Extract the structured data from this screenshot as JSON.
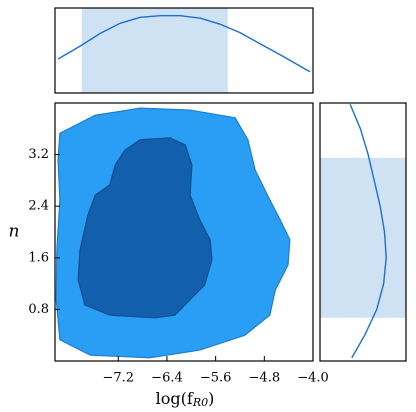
{
  "chart_data": [
    {
      "type": "contour",
      "x_label": {
        "base": "log(f",
        "sub": "R0",
        "close": ")"
      },
      "y_label": "n",
      "xlim": [
        -8.24,
        -4.0
      ],
      "ylim": [
        0,
        4
      ],
      "xticks": [
        {
          "value": -7.2,
          "label": "−7.2"
        },
        {
          "value": -6.4,
          "label": "−6.4"
        },
        {
          "value": -5.6,
          "label": "−5.6"
        },
        {
          "value": -4.8,
          "label": "−4.8"
        },
        {
          "value": -4.0,
          "label": "−4.0"
        }
      ],
      "yticks": [
        0.8,
        1.6,
        2.4,
        3.2
      ],
      "series": [
        {
          "color": "#2a9df4",
          "edge": "#1f7fd0",
          "x": [
            -8.16,
            -7.58,
            -6.84,
            -6.02,
            -5.28,
            -5.07,
            -4.95,
            -4.71,
            -4.54,
            -4.38,
            -4.41,
            -4.62,
            -4.71,
            -5.12,
            -5.86,
            -6.68,
            -7.66,
            -8.16,
            -8.22,
            -8.21,
            -8.16,
            -8.19
          ],
          "y": [
            3.53,
            3.81,
            3.92,
            3.89,
            3.77,
            3.43,
            2.96,
            2.5,
            2.19,
            1.88,
            1.49,
            1.1,
            0.71,
            0.4,
            0.17,
            0.05,
            0.09,
            0.33,
            0.95,
            1.72,
            2.5,
            3.12
          ]
        },
        {
          "color": "#1260ad",
          "edge": "#0d4f91",
          "x": [
            -7.09,
            -6.84,
            -6.35,
            -6.1,
            -5.99,
            -6.02,
            -5.86,
            -5.69,
            -5.66,
            -5.78,
            -6.02,
            -6.27,
            -6.6,
            -7.34,
            -7.75,
            -7.86,
            -7.83,
            -7.7,
            -7.58,
            -7.34,
            -7.25
          ],
          "y": [
            3.27,
            3.43,
            3.46,
            3.35,
            3.04,
            2.57,
            2.19,
            1.88,
            1.57,
            1.18,
            0.95,
            0.71,
            0.67,
            0.71,
            0.87,
            1.26,
            1.72,
            2.26,
            2.57,
            2.73,
            3.04
          ]
        }
      ]
    },
    {
      "type": "line",
      "orientation": "vertical",
      "xlim": [
        -8.24,
        -4.0
      ],
      "ylim": [
        0,
        1
      ],
      "x": [
        -8.19,
        -7.83,
        -7.5,
        -7.17,
        -6.84,
        -6.51,
        -6.18,
        -5.85,
        -5.53,
        -5.2,
        -4.87,
        -4.54,
        -4.05
      ],
      "values": [
        0.4,
        0.55,
        0.7,
        0.82,
        0.89,
        0.91,
        0.91,
        0.88,
        0.81,
        0.71,
        0.58,
        0.45,
        0.25
      ],
      "color": "#1a6fd0",
      "interval": [
        -7.8,
        -5.4
      ],
      "interval_color": "#cfe2f3"
    },
    {
      "type": "line",
      "orientation": "horizontal",
      "xlim": [
        0,
        1
      ],
      "ylim": [
        0,
        4
      ],
      "y": [
        3.98,
        3.6,
        3.2,
        2.8,
        2.4,
        2.0,
        1.6,
        1.2,
        0.8,
        0.4,
        0.05
      ],
      "values": [
        0.35,
        0.47,
        0.56,
        0.63,
        0.7,
        0.75,
        0.77,
        0.74,
        0.66,
        0.52,
        0.37
      ],
      "color": "#1a6fd0",
      "interval": [
        0.67,
        3.15
      ],
      "interval_color": "#cfe2f3"
    }
  ]
}
